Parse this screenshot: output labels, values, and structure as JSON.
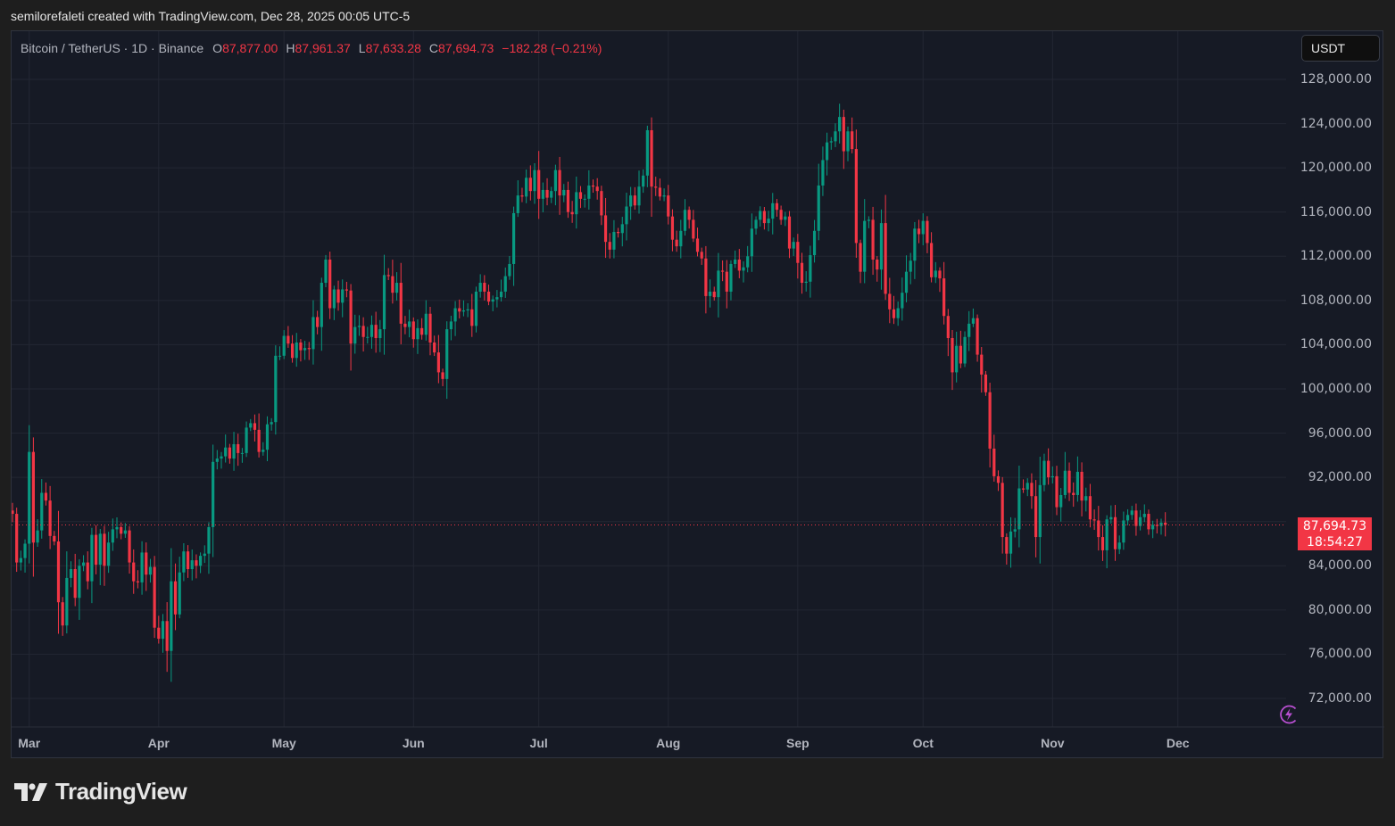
{
  "attribution": "semilorefaleti created with TradingView.com, Dec 28, 2025 00:05 UTC-5",
  "legend": {
    "symbol": "Bitcoin / TetherUS · 1D · Binance",
    "open_label": "O",
    "open": "87,877.00",
    "high_label": "H",
    "high": "87,961.37",
    "low_label": "L",
    "low": "87,633.28",
    "close_label": "C",
    "close": "87,694.73",
    "change": "−182.28 (−0.21%)"
  },
  "currency_button": "USDT",
  "last_price": {
    "price": "87,694.73",
    "countdown": "18:54:27"
  },
  "brand": {
    "name": "TradingView"
  },
  "icons": {
    "alert": "lightning-bolt-icon",
    "logo": "tradingview-logo-icon"
  },
  "colors": {
    "up": "#089981",
    "down": "#f23645",
    "background": "#161a25",
    "grid": "#232733",
    "axis_text": "#b2b5be",
    "last_price_line": "#f23645",
    "bolt": "#b84fd1"
  },
  "chart_data": {
    "type": "candlestick",
    "title": "Bitcoin / TetherUS · 1D · Binance",
    "xlabel": "",
    "ylabel": "USDT",
    "ylim": [
      69500,
      131000
    ],
    "grid": true,
    "legend_position": "top-left",
    "y_ticks": [
      "128,000.00",
      "124,000.00",
      "120,000.00",
      "116,000.00",
      "112,000.00",
      "108,000.00",
      "104,000.00",
      "100,000.00",
      "96,000.00",
      "92,000.00",
      "88,000.00",
      "84,000.00",
      "80,000.00",
      "76,000.00",
      "72,000.00"
    ],
    "x_ticks": [
      {
        "label": "Mar",
        "day": 4
      },
      {
        "label": "Apr",
        "day": 35
      },
      {
        "label": "May",
        "day": 65
      },
      {
        "label": "Jun",
        "day": 96
      },
      {
        "label": "Jul",
        "day": 126
      },
      {
        "label": "Aug",
        "day": 157
      },
      {
        "label": "Sep",
        "day": 188
      },
      {
        "label": "Oct",
        "day": 218
      },
      {
        "label": "Nov",
        "day": 249
      },
      {
        "label": "Dec",
        "day": 279
      }
    ],
    "start_date": "2025-02-25",
    "end_date": "2025-12-28",
    "last_close": 87694.73,
    "closes": [
      88700,
      84300,
      84700,
      86000,
      94300,
      86100,
      87200,
      90600,
      89900,
      86700,
      86200,
      80700,
      78600,
      82900,
      83700,
      81100,
      84000,
      84300,
      82600,
      86800,
      84100,
      86900,
      84000,
      86100,
      87300,
      87500,
      86900,
      87200,
      84300,
      82600,
      82500,
      85200,
      83200,
      83900,
      78400,
      77400,
      79000,
      76300,
      82600,
      79600,
      83400,
      85300,
      83700,
      84500,
      84000,
      84900,
      85100,
      87500,
      93400,
      93700,
      93900,
      94700,
      93700,
      95000,
      94200,
      94200,
      96500,
      96900,
      96300,
      94300,
      94500,
      96800,
      97000,
      103000,
      103000,
      104800,
      104100,
      102800,
      104200,
      103500,
      103700,
      103600,
      106500,
      105600,
      109600,
      111700,
      107300,
      109000,
      107800,
      109000,
      108900,
      104100,
      105600,
      105700,
      104700,
      104700,
      105800,
      104600,
      105400,
      110300,
      110200,
      108700,
      109600,
      105900,
      105600,
      106100,
      104500,
      105500,
      104900,
      106800,
      104200,
      103300,
      101500,
      100900,
      105400,
      106100,
      107300,
      107000,
      107100,
      107200,
      105700,
      108800,
      109600,
      108800,
      107900,
      108100,
      108300,
      108800,
      110200,
      111300,
      115900,
      117500,
      117400,
      119100,
      117900,
      119800,
      117200,
      118000,
      117300,
      117900,
      119800,
      117500,
      118000,
      116000,
      115800,
      117800,
      117200,
      117200,
      118400,
      118300,
      117900,
      115700,
      113300,
      112600,
      114200,
      114100,
      114900,
      116500,
      117500,
      116600,
      118300,
      119300,
      123400,
      118300,
      118200,
      117400,
      117500,
      115600,
      113500,
      112900,
      114300,
      116200,
      115300,
      113600,
      112400,
      111800,
      108400,
      108800,
      108300,
      110700,
      110600,
      108800,
      111300,
      111700,
      110700,
      111000,
      112000,
      114500,
      115300,
      116100,
      115000,
      115400,
      116800,
      116200,
      115300,
      115600,
      112700,
      113300,
      111400,
      109600,
      109700,
      112100,
      114300,
      118400,
      120700,
      122300,
      122400,
      123300,
      124600,
      121500,
      123300,
      121700,
      113200,
      110600,
      115200,
      115300,
      111700,
      110800,
      115000,
      108600,
      107200,
      106400,
      107300,
      108700,
      110600,
      111600,
      114500,
      114000,
      115200,
      113200,
      110100,
      110700,
      110000,
      106600,
      104600,
      101500,
      103900,
      102300,
      104700,
      105900,
      106400,
      103100,
      101300,
      99700,
      94600,
      92100,
      91500,
      86600,
      85100,
      87100,
      87300,
      91000,
      90900,
      91500,
      90300,
      86600,
      91300,
      93500,
      92000,
      92100,
      89300,
      90400,
      92600,
      90600,
      90400,
      92500,
      89900,
      90300,
      88200,
      88100,
      86600,
      85400,
      88200,
      88400,
      85500,
      86100,
      88100,
      88600,
      89000,
      87600,
      88400,
      88700,
      87300,
      87700,
      87600,
      87900,
      87694.73
    ]
  }
}
